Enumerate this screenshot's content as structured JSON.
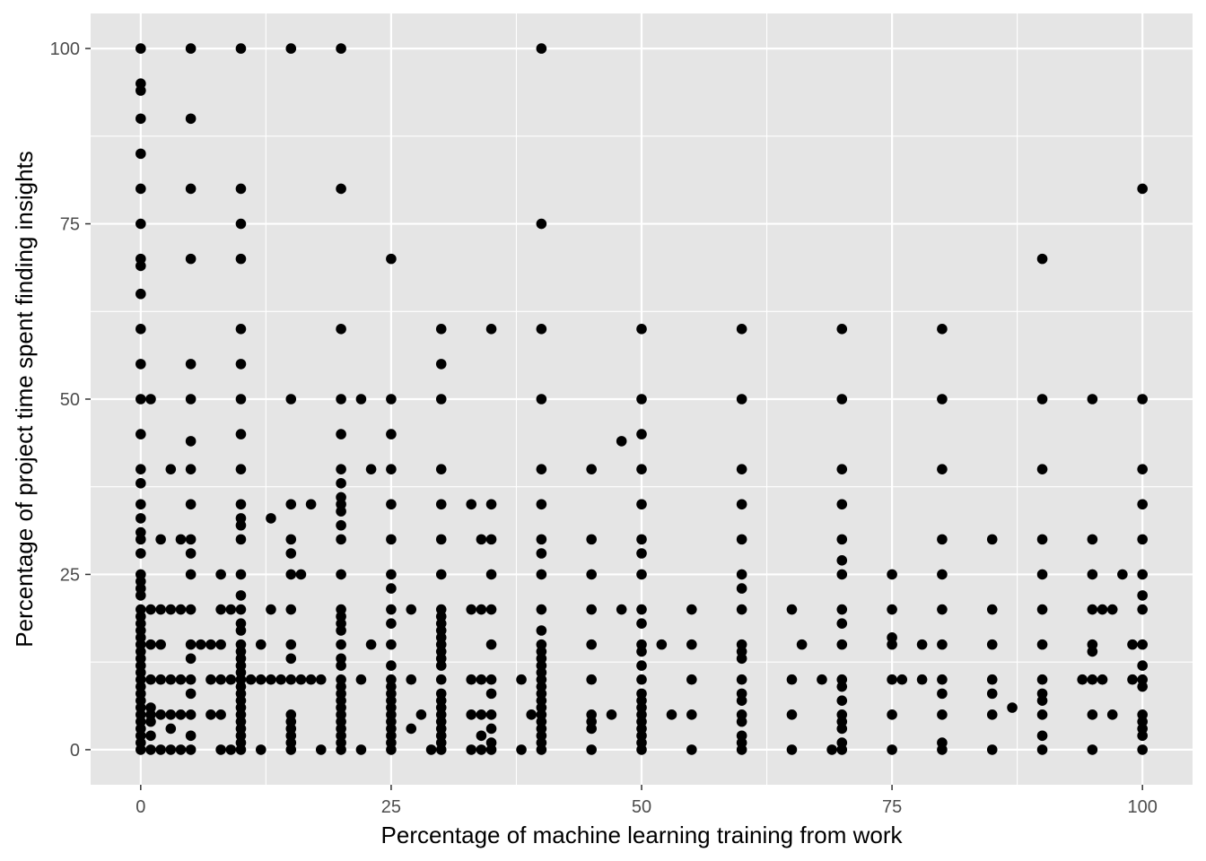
{
  "chart_data": {
    "type": "scatter",
    "title": "",
    "xlabel": "Percentage of machine learning training from work",
    "ylabel": "Percentage of project time spent finding insights",
    "xlim": [
      -5,
      105
    ],
    "ylim": [
      -5,
      105
    ],
    "x_ticks": [
      0,
      25,
      50,
      75,
      100
    ],
    "y_ticks": [
      0,
      25,
      50,
      75,
      100
    ],
    "x_tick_labels": [
      "0",
      "25",
      "50",
      "75",
      "100"
    ],
    "y_tick_labels": [
      "0",
      "25",
      "50",
      "75",
      "100"
    ],
    "grid": true,
    "colors": {
      "panel": "#e5e5e5",
      "grid": "#ffffff",
      "point": "#000000"
    },
    "points": [
      [
        0,
        100
      ],
      [
        0,
        95
      ],
      [
        0,
        94
      ],
      [
        0,
        90
      ],
      [
        0,
        85
      ],
      [
        0,
        80
      ],
      [
        0,
        75
      ],
      [
        0,
        70
      ],
      [
        0,
        69
      ],
      [
        0,
        65
      ],
      [
        0,
        60
      ],
      [
        0,
        55
      ],
      [
        0,
        50
      ],
      [
        0,
        45
      ],
      [
        0,
        40
      ],
      [
        0,
        38
      ],
      [
        0,
        35
      ],
      [
        0,
        33
      ],
      [
        0,
        31
      ],
      [
        0,
        30
      ],
      [
        0,
        28
      ],
      [
        0,
        25
      ],
      [
        0,
        24
      ],
      [
        0,
        23
      ],
      [
        0,
        22
      ],
      [
        0,
        20
      ],
      [
        0,
        19
      ],
      [
        0,
        18
      ],
      [
        0,
        17
      ],
      [
        0,
        16
      ],
      [
        0,
        15
      ],
      [
        0,
        14
      ],
      [
        0,
        13
      ],
      [
        0,
        12
      ],
      [
        0,
        11
      ],
      [
        0,
        10
      ],
      [
        0,
        9
      ],
      [
        0,
        8
      ],
      [
        0,
        7
      ],
      [
        0,
        6
      ],
      [
        0,
        5
      ],
      [
        0,
        4
      ],
      [
        0,
        3
      ],
      [
        0,
        2
      ],
      [
        0,
        1
      ],
      [
        0,
        0
      ],
      [
        1,
        50
      ],
      [
        1,
        20
      ],
      [
        1,
        15
      ],
      [
        1,
        10
      ],
      [
        1,
        6
      ],
      [
        1,
        5
      ],
      [
        1,
        4
      ],
      [
        1,
        2
      ],
      [
        1,
        0
      ],
      [
        2,
        30
      ],
      [
        2,
        20
      ],
      [
        2,
        15
      ],
      [
        2,
        10
      ],
      [
        2,
        5
      ],
      [
        2,
        0
      ],
      [
        3,
        40
      ],
      [
        3,
        20
      ],
      [
        3,
        10
      ],
      [
        3,
        5
      ],
      [
        3,
        3
      ],
      [
        3,
        0
      ],
      [
        4,
        30
      ],
      [
        4,
        20
      ],
      [
        4,
        10
      ],
      [
        4,
        5
      ],
      [
        4,
        0
      ],
      [
        5,
        100
      ],
      [
        5,
        90
      ],
      [
        5,
        80
      ],
      [
        5,
        70
      ],
      [
        5,
        55
      ],
      [
        5,
        50
      ],
      [
        5,
        44
      ],
      [
        5,
        40
      ],
      [
        5,
        35
      ],
      [
        5,
        30
      ],
      [
        5,
        28
      ],
      [
        5,
        25
      ],
      [
        5,
        20
      ],
      [
        5,
        15
      ],
      [
        5,
        13
      ],
      [
        5,
        10
      ],
      [
        5,
        8
      ],
      [
        5,
        5
      ],
      [
        5,
        2
      ],
      [
        5,
        0
      ],
      [
        6,
        15
      ],
      [
        7,
        15
      ],
      [
        7,
        10
      ],
      [
        7,
        5
      ],
      [
        8,
        25
      ],
      [
        8,
        20
      ],
      [
        8,
        15
      ],
      [
        8,
        10
      ],
      [
        8,
        5
      ],
      [
        8,
        0
      ],
      [
        9,
        20
      ],
      [
        9,
        10
      ],
      [
        9,
        0
      ],
      [
        10,
        100
      ],
      [
        10,
        80
      ],
      [
        10,
        75
      ],
      [
        10,
        70
      ],
      [
        10,
        60
      ],
      [
        10,
        55
      ],
      [
        10,
        50
      ],
      [
        10,
        45
      ],
      [
        10,
        40
      ],
      [
        10,
        35
      ],
      [
        10,
        33
      ],
      [
        10,
        32
      ],
      [
        10,
        30
      ],
      [
        10,
        25
      ],
      [
        10,
        22
      ],
      [
        10,
        20
      ],
      [
        10,
        18
      ],
      [
        10,
        17
      ],
      [
        10,
        15
      ],
      [
        10,
        14
      ],
      [
        10,
        13
      ],
      [
        10,
        12
      ],
      [
        10,
        11
      ],
      [
        10,
        10
      ],
      [
        10,
        9
      ],
      [
        10,
        8
      ],
      [
        10,
        7
      ],
      [
        10,
        6
      ],
      [
        10,
        5
      ],
      [
        10,
        4
      ],
      [
        10,
        3
      ],
      [
        10,
        2
      ],
      [
        10,
        1
      ],
      [
        10,
        0
      ],
      [
        11,
        10
      ],
      [
        12,
        15
      ],
      [
        12,
        10
      ],
      [
        12,
        0
      ],
      [
        13,
        33
      ],
      [
        13,
        20
      ],
      [
        13,
        10
      ],
      [
        14,
        10
      ],
      [
        15,
        100
      ],
      [
        15,
        50
      ],
      [
        15,
        35
      ],
      [
        15,
        30
      ],
      [
        15,
        28
      ],
      [
        15,
        25
      ],
      [
        15,
        20
      ],
      [
        15,
        15
      ],
      [
        15,
        13
      ],
      [
        15,
        10
      ],
      [
        15,
        5
      ],
      [
        15,
        4
      ],
      [
        15,
        3
      ],
      [
        15,
        2
      ],
      [
        15,
        1
      ],
      [
        15,
        0
      ],
      [
        16,
        25
      ],
      [
        16,
        10
      ],
      [
        17,
        35
      ],
      [
        17,
        10
      ],
      [
        18,
        10
      ],
      [
        18,
        0
      ],
      [
        20,
        100
      ],
      [
        20,
        80
      ],
      [
        20,
        60
      ],
      [
        20,
        50
      ],
      [
        20,
        45
      ],
      [
        20,
        40
      ],
      [
        20,
        38
      ],
      [
        20,
        36
      ],
      [
        20,
        35
      ],
      [
        20,
        34
      ],
      [
        20,
        32
      ],
      [
        20,
        30
      ],
      [
        20,
        25
      ],
      [
        20,
        20
      ],
      [
        20,
        19
      ],
      [
        20,
        18
      ],
      [
        20,
        17
      ],
      [
        20,
        15
      ],
      [
        20,
        13
      ],
      [
        20,
        12
      ],
      [
        20,
        10
      ],
      [
        20,
        9
      ],
      [
        20,
        8
      ],
      [
        20,
        7
      ],
      [
        20,
        6
      ],
      [
        20,
        5
      ],
      [
        20,
        4
      ],
      [
        20,
        3
      ],
      [
        20,
        2
      ],
      [
        20,
        1
      ],
      [
        20,
        0
      ],
      [
        22,
        50
      ],
      [
        22,
        10
      ],
      [
        22,
        0
      ],
      [
        23,
        40
      ],
      [
        23,
        15
      ],
      [
        25,
        70
      ],
      [
        25,
        50
      ],
      [
        25,
        45
      ],
      [
        25,
        40
      ],
      [
        25,
        35
      ],
      [
        25,
        30
      ],
      [
        25,
        25
      ],
      [
        25,
        23
      ],
      [
        25,
        20
      ],
      [
        25,
        18
      ],
      [
        25,
        15
      ],
      [
        25,
        12
      ],
      [
        25,
        10
      ],
      [
        25,
        9
      ],
      [
        25,
        8
      ],
      [
        25,
        7
      ],
      [
        25,
        6
      ],
      [
        25,
        5
      ],
      [
        25,
        4
      ],
      [
        25,
        3
      ],
      [
        25,
        2
      ],
      [
        25,
        1
      ],
      [
        25,
        0
      ],
      [
        27,
        20
      ],
      [
        27,
        10
      ],
      [
        27,
        3
      ],
      [
        28,
        5
      ],
      [
        29,
        0
      ],
      [
        30,
        60
      ],
      [
        30,
        55
      ],
      [
        30,
        50
      ],
      [
        30,
        40
      ],
      [
        30,
        35
      ],
      [
        30,
        30
      ],
      [
        30,
        25
      ],
      [
        30,
        20
      ],
      [
        30,
        19
      ],
      [
        30,
        18
      ],
      [
        30,
        17
      ],
      [
        30,
        16
      ],
      [
        30,
        15
      ],
      [
        30,
        14
      ],
      [
        30,
        13
      ],
      [
        30,
        12
      ],
      [
        30,
        10
      ],
      [
        30,
        8
      ],
      [
        30,
        7
      ],
      [
        30,
        6
      ],
      [
        30,
        5
      ],
      [
        30,
        4
      ],
      [
        30,
        3
      ],
      [
        30,
        2
      ],
      [
        30,
        1
      ],
      [
        30,
        0
      ],
      [
        33,
        35
      ],
      [
        33,
        20
      ],
      [
        33,
        10
      ],
      [
        33,
        5
      ],
      [
        33,
        0
      ],
      [
        34,
        30
      ],
      [
        34,
        20
      ],
      [
        34,
        10
      ],
      [
        34,
        5
      ],
      [
        34,
        2
      ],
      [
        34,
        0
      ],
      [
        35,
        60
      ],
      [
        35,
        35
      ],
      [
        35,
        30
      ],
      [
        35,
        25
      ],
      [
        35,
        20
      ],
      [
        35,
        15
      ],
      [
        35,
        10
      ],
      [
        35,
        8
      ],
      [
        35,
        5
      ],
      [
        35,
        3
      ],
      [
        35,
        1
      ],
      [
        35,
        0
      ],
      [
        38,
        10
      ],
      [
        38,
        0
      ],
      [
        39,
        5
      ],
      [
        40,
        100
      ],
      [
        40,
        75
      ],
      [
        40,
        60
      ],
      [
        40,
        50
      ],
      [
        40,
        40
      ],
      [
        40,
        35
      ],
      [
        40,
        30
      ],
      [
        40,
        28
      ],
      [
        40,
        25
      ],
      [
        40,
        20
      ],
      [
        40,
        17
      ],
      [
        40,
        15
      ],
      [
        40,
        14
      ],
      [
        40,
        13
      ],
      [
        40,
        12
      ],
      [
        40,
        11
      ],
      [
        40,
        10
      ],
      [
        40,
        9
      ],
      [
        40,
        8
      ],
      [
        40,
        7
      ],
      [
        40,
        6
      ],
      [
        40,
        5
      ],
      [
        40,
        4
      ],
      [
        40,
        3
      ],
      [
        40,
        2
      ],
      [
        40,
        1
      ],
      [
        40,
        0
      ],
      [
        45,
        40
      ],
      [
        45,
        30
      ],
      [
        45,
        25
      ],
      [
        45,
        20
      ],
      [
        45,
        15
      ],
      [
        45,
        10
      ],
      [
        45,
        5
      ],
      [
        45,
        4
      ],
      [
        45,
        3
      ],
      [
        45,
        0
      ],
      [
        47,
        5
      ],
      [
        48,
        44
      ],
      [
        48,
        20
      ],
      [
        50,
        60
      ],
      [
        50,
        50
      ],
      [
        50,
        45
      ],
      [
        50,
        40
      ],
      [
        50,
        35
      ],
      [
        50,
        30
      ],
      [
        50,
        28
      ],
      [
        50,
        25
      ],
      [
        50,
        20
      ],
      [
        50,
        18
      ],
      [
        50,
        15
      ],
      [
        50,
        14
      ],
      [
        50,
        12
      ],
      [
        50,
        10
      ],
      [
        50,
        8
      ],
      [
        50,
        7
      ],
      [
        50,
        6
      ],
      [
        50,
        5
      ],
      [
        50,
        4
      ],
      [
        50,
        3
      ],
      [
        50,
        2
      ],
      [
        50,
        1
      ],
      [
        50,
        0
      ],
      [
        52,
        15
      ],
      [
        53,
        5
      ],
      [
        55,
        20
      ],
      [
        55,
        15
      ],
      [
        55,
        10
      ],
      [
        55,
        5
      ],
      [
        55,
        0
      ],
      [
        60,
        60
      ],
      [
        60,
        50
      ],
      [
        60,
        40
      ],
      [
        60,
        35
      ],
      [
        60,
        30
      ],
      [
        60,
        25
      ],
      [
        60,
        23
      ],
      [
        60,
        20
      ],
      [
        60,
        15
      ],
      [
        60,
        14
      ],
      [
        60,
        13
      ],
      [
        60,
        10
      ],
      [
        60,
        8
      ],
      [
        60,
        7
      ],
      [
        60,
        5
      ],
      [
        60,
        4
      ],
      [
        60,
        2
      ],
      [
        60,
        1
      ],
      [
        60,
        0
      ],
      [
        65,
        20
      ],
      [
        65,
        10
      ],
      [
        65,
        5
      ],
      [
        65,
        0
      ],
      [
        66,
        15
      ],
      [
        68,
        10
      ],
      [
        69,
        0
      ],
      [
        70,
        60
      ],
      [
        70,
        50
      ],
      [
        70,
        40
      ],
      [
        70,
        35
      ],
      [
        70,
        30
      ],
      [
        70,
        27
      ],
      [
        70,
        25
      ],
      [
        70,
        20
      ],
      [
        70,
        18
      ],
      [
        70,
        15
      ],
      [
        70,
        10
      ],
      [
        70,
        9
      ],
      [
        70,
        7
      ],
      [
        70,
        5
      ],
      [
        70,
        4
      ],
      [
        70,
        3
      ],
      [
        70,
        1
      ],
      [
        70,
        0
      ],
      [
        75,
        25
      ],
      [
        75,
        20
      ],
      [
        75,
        16
      ],
      [
        75,
        15
      ],
      [
        75,
        10
      ],
      [
        75,
        5
      ],
      [
        75,
        0
      ],
      [
        76,
        10
      ],
      [
        78,
        15
      ],
      [
        78,
        10
      ],
      [
        80,
        60
      ],
      [
        80,
        50
      ],
      [
        80,
        40
      ],
      [
        80,
        30
      ],
      [
        80,
        25
      ],
      [
        80,
        20
      ],
      [
        80,
        15
      ],
      [
        80,
        10
      ],
      [
        80,
        8
      ],
      [
        80,
        5
      ],
      [
        80,
        1
      ],
      [
        80,
        0
      ],
      [
        85,
        30
      ],
      [
        85,
        20
      ],
      [
        85,
        15
      ],
      [
        85,
        10
      ],
      [
        85,
        8
      ],
      [
        85,
        5
      ],
      [
        85,
        0
      ],
      [
        87,
        6
      ],
      [
        90,
        70
      ],
      [
        90,
        50
      ],
      [
        90,
        40
      ],
      [
        90,
        30
      ],
      [
        90,
        25
      ],
      [
        90,
        20
      ],
      [
        90,
        15
      ],
      [
        90,
        10
      ],
      [
        90,
        8
      ],
      [
        90,
        7
      ],
      [
        90,
        5
      ],
      [
        90,
        2
      ],
      [
        90,
        0
      ],
      [
        94,
        10
      ],
      [
        95,
        50
      ],
      [
        95,
        30
      ],
      [
        95,
        25
      ],
      [
        95,
        20
      ],
      [
        95,
        15
      ],
      [
        95,
        14
      ],
      [
        95,
        10
      ],
      [
        95,
        5
      ],
      [
        95,
        0
      ],
      [
        96,
        20
      ],
      [
        96,
        10
      ],
      [
        97,
        20
      ],
      [
        97,
        5
      ],
      [
        98,
        25
      ],
      [
        99,
        15
      ],
      [
        99,
        10
      ],
      [
        100,
        80
      ],
      [
        100,
        50
      ],
      [
        100,
        40
      ],
      [
        100,
        35
      ],
      [
        100,
        30
      ],
      [
        100,
        25
      ],
      [
        100,
        22
      ],
      [
        100,
        20
      ],
      [
        100,
        15
      ],
      [
        100,
        12
      ],
      [
        100,
        10
      ],
      [
        100,
        9
      ],
      [
        100,
        5
      ],
      [
        100,
        4
      ],
      [
        100,
        3
      ],
      [
        100,
        2
      ],
      [
        100,
        0
      ]
    ]
  }
}
